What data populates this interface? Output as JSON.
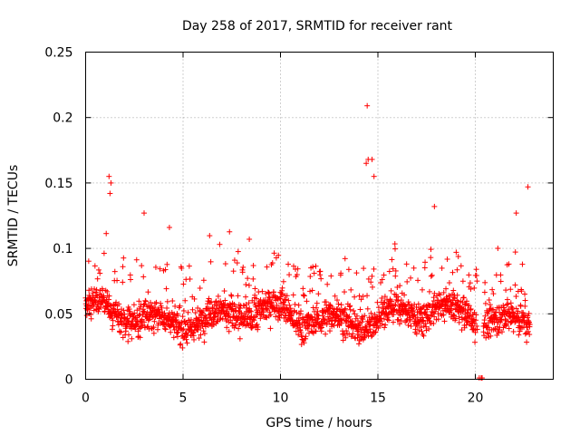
{
  "chart_data": {
    "type": "scatter",
    "title": "Day 258 of 2017, SRMTID for receiver rant",
    "xlabel": "GPS time / hours",
    "ylabel": "SRMTID / TECUs",
    "xlim": [
      0,
      24
    ],
    "ylim": [
      0,
      0.25
    ],
    "xticks": [
      0,
      5,
      10,
      15,
      20
    ],
    "xtick_labels": [
      "0",
      "5",
      "10",
      "15",
      "20"
    ],
    "yticks": [
      0,
      0.05,
      0.1,
      0.15,
      0.2,
      0.25
    ],
    "ytick_labels": [
      "0",
      "0.05",
      "0.1",
      "0.15",
      "0.2",
      "0.25"
    ],
    "grid": true,
    "marker": "+",
    "color": "#ff0000",
    "series": [
      {
        "name": "SRMTID",
        "x_range": [
          0,
          22.8
        ],
        "point_count": 1900,
        "typical_range": [
          0.02,
          0.08
        ],
        "median_approx": 0.048,
        "peaks": [
          {
            "x": 1.2,
            "y": 0.155
          },
          {
            "x": 1.3,
            "y": 0.15
          },
          {
            "x": 1.25,
            "y": 0.142
          },
          {
            "x": 3.0,
            "y": 0.127
          },
          {
            "x": 4.3,
            "y": 0.116
          },
          {
            "x": 8.4,
            "y": 0.107
          },
          {
            "x": 14.45,
            "y": 0.209
          },
          {
            "x": 14.5,
            "y": 0.168
          },
          {
            "x": 14.7,
            "y": 0.168
          },
          {
            "x": 14.8,
            "y": 0.155
          },
          {
            "x": 14.4,
            "y": 0.165
          },
          {
            "x": 17.9,
            "y": 0.132
          },
          {
            "x": 22.7,
            "y": 0.147
          },
          {
            "x": 22.1,
            "y": 0.127
          }
        ],
        "gap": {
          "x_start": 20.1,
          "x_end": 20.4
        },
        "low_points": [
          {
            "x": 20.2,
            "y": 0.001
          },
          {
            "x": 20.3,
            "y": 0.001
          },
          {
            "x": 20.35,
            "y": 0.001
          }
        ]
      }
    ]
  }
}
